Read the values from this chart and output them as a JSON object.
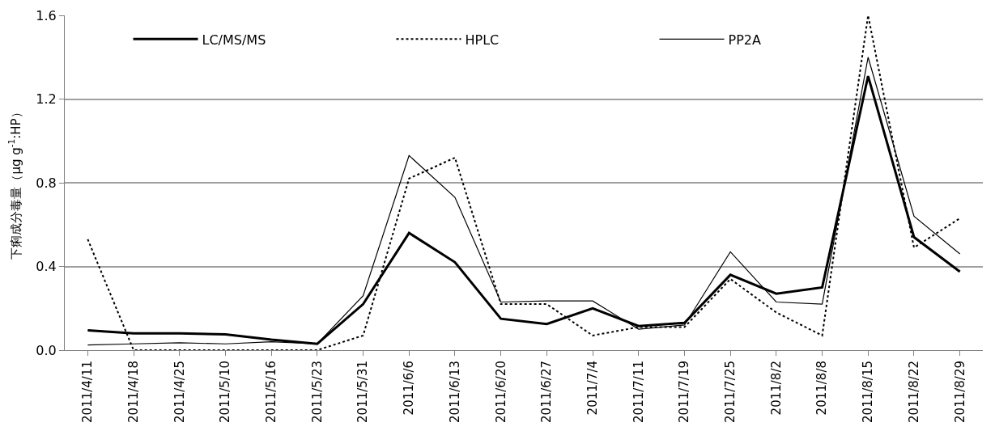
{
  "chart_data": {
    "type": "line",
    "ylabel": "下痢成分毒量（μg g$^{-1}$:HP）",
    "categories": [
      "2011/4/11",
      "2011/4/18",
      "2011/4/25",
      "2011/5/10",
      "2011/5/16",
      "2011/5/23",
      "2011/5/31",
      "2011/6/6",
      "2011/6/13",
      "2011/6/20",
      "2011/6/27",
      "2011/7/4",
      "2011/7/11",
      "2011/7/19",
      "2011/7/25",
      "2011/8/2",
      "2011/8/8",
      "2011/8/15",
      "2011/8/22",
      "2011/8/29"
    ],
    "series": [
      {
        "name": "LC/MS/MS",
        "color": "#000000",
        "line_style": "solid",
        "values": [
          0.095,
          0.08,
          0.08,
          0.075,
          0.05,
          0.03,
          0.22,
          0.56,
          0.42,
          0.15,
          0.125,
          0.2,
          0.115,
          0.13,
          0.36,
          0.27,
          0.3,
          1.31,
          0.54,
          0.375
        ]
      },
      {
        "name": "HPLC",
        "color": "#000000",
        "line_style": "dotted",
        "values": [
          0.53,
          0,
          0,
          0,
          0,
          0,
          0.07,
          0.82,
          0.92,
          0.22,
          0.22,
          0.07,
          0.11,
          0.11,
          0.34,
          0.18,
          0.07,
          1.6,
          0.49,
          0.63
        ]
      },
      {
        "name": "PP2A",
        "color": "#000000",
        "line_style": "solid",
        "values": [
          0.025,
          0.03,
          0.035,
          0.03,
          0.04,
          0.03,
          0.26,
          0.93,
          0.73,
          0.23,
          0.235,
          0.235,
          0.1,
          0.12,
          0.47,
          0.23,
          0.22,
          1.4,
          0.64,
          0.46
        ]
      }
    ],
    "ylim": [
      0,
      1.6
    ],
    "yticks": [
      {
        "value": 0,
        "label": "0.0"
      },
      {
        "value": 0.4,
        "label": "0.4"
      },
      {
        "value": 0.8,
        "label": "0.8"
      },
      {
        "value": 1.2,
        "label": "1.2"
      },
      {
        "value": 1.6,
        "label": "1.6"
      }
    ],
    "grid": "y",
    "legend": "top",
    "marker": "none"
  }
}
